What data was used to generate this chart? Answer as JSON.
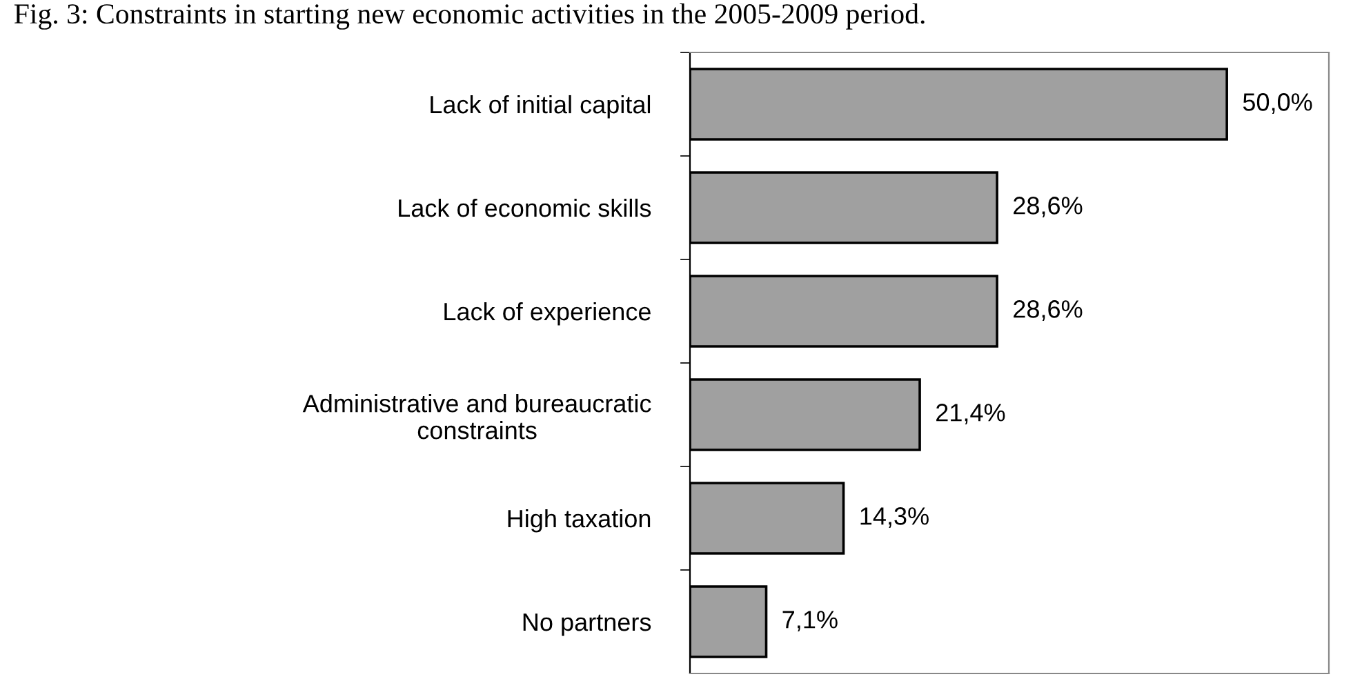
{
  "chart_data": {
    "type": "bar",
    "orientation": "horizontal",
    "title": "Fig. 3: Constraints in starting new economic activities in the 2005-2009 period.",
    "categories": [
      "Lack of initial capital",
      "Lack of economic skills",
      "Lack of experience",
      "Administrative and bureaucratic\nconstraints",
      "High taxation",
      "No partners"
    ],
    "values": [
      50.0,
      28.6,
      28.6,
      21.4,
      14.3,
      7.1
    ],
    "value_labels": [
      "50,0%",
      "28,6%",
      "28,6%",
      "21,4%",
      "14,3%",
      "7,1%"
    ],
    "color": "#a0a0a0",
    "xlim": [
      0,
      59.5
    ],
    "tick_labels": "y",
    "grid": false,
    "legend": false
  }
}
